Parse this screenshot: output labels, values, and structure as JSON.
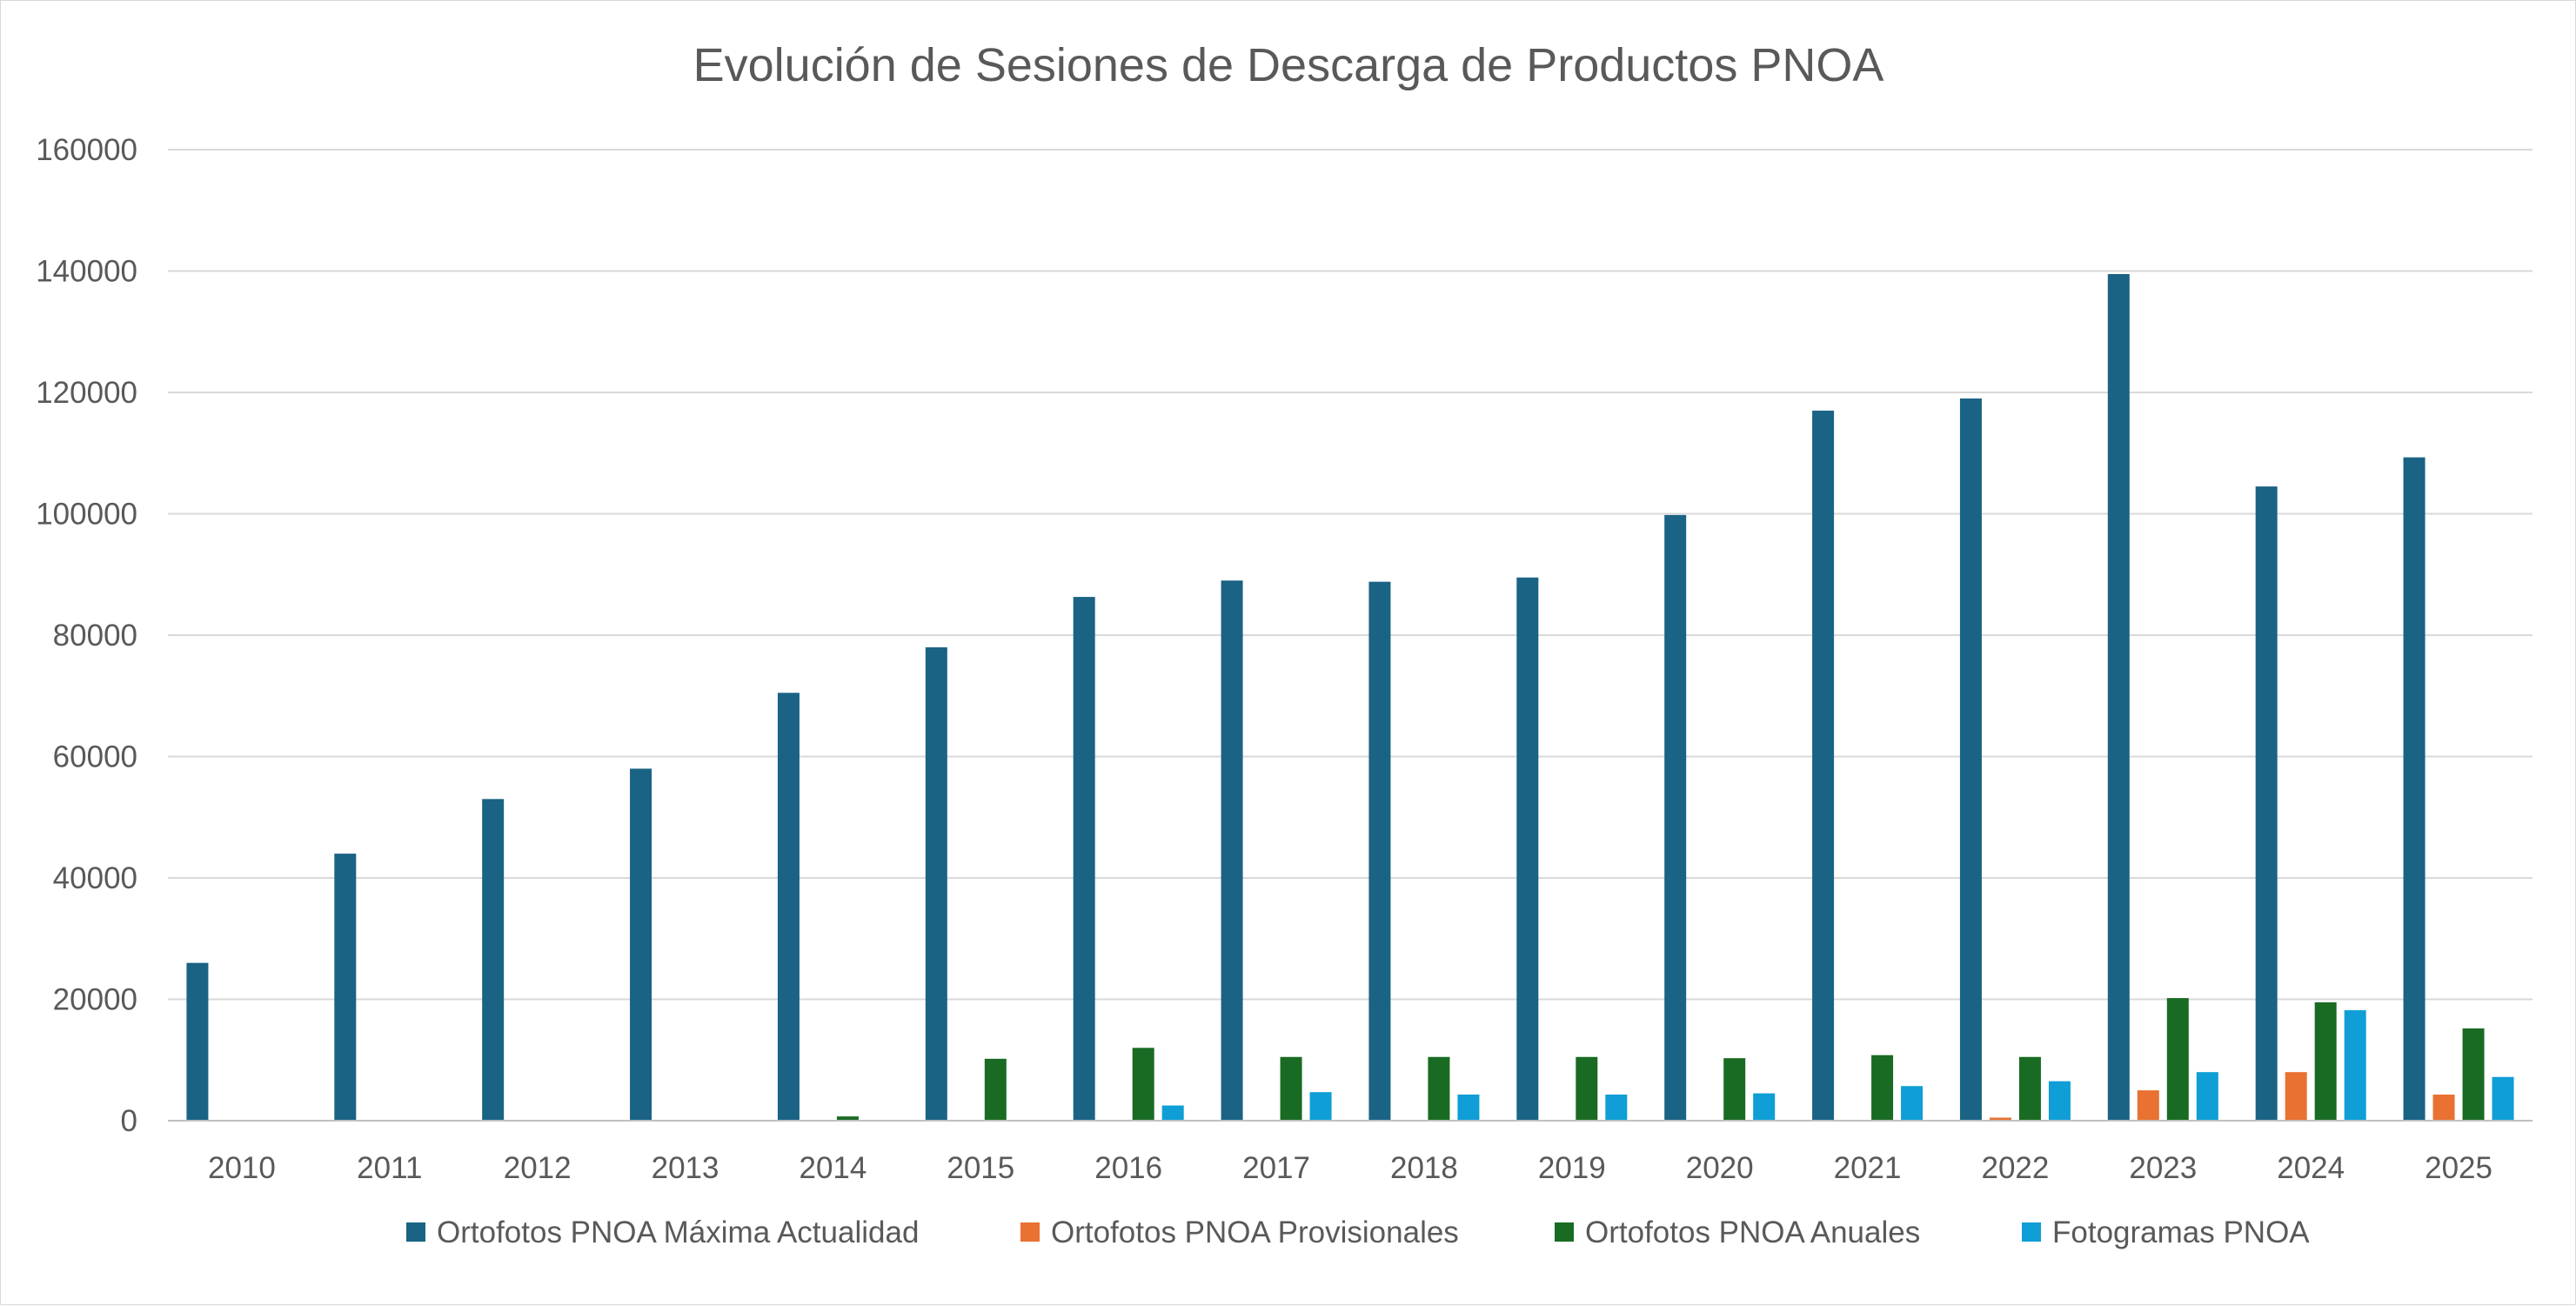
{
  "chart_data": {
    "type": "bar",
    "title": "Evolución de Sesiones de Descarga de Productos PNOA",
    "xlabel": "",
    "ylabel": "",
    "ylim": [
      0,
      160000
    ],
    "yticks": [
      "0",
      "20000",
      "40000",
      "60000",
      "80000",
      "100000",
      "120000",
      "140000",
      "160000"
    ],
    "grid": true,
    "legend_position": "bottom",
    "categories": [
      "2010",
      "2011",
      "2012",
      "2013",
      "2014",
      "2015",
      "2016",
      "2017",
      "2018",
      "2019",
      "2020",
      "2021",
      "2022",
      "2023",
      "2024",
      "2025"
    ],
    "series": [
      {
        "name": "Ortofotos PNOA Máxima Actualidad",
        "color": "#1a6384",
        "values": [
          26000,
          44000,
          53000,
          58000,
          70500,
          78000,
          86300,
          89000,
          88800,
          89500,
          99800,
          117000,
          119000,
          139500,
          104500,
          109300
        ]
      },
      {
        "name": "Ortofotos PNOA Provisionales",
        "color": "#e97132",
        "values": [
          0,
          0,
          0,
          0,
          0,
          0,
          0,
          0,
          0,
          0,
          0,
          0,
          500,
          5000,
          8000,
          4300
        ]
      },
      {
        "name": "Ortofotos PNOA Anuales",
        "color": "#196b24",
        "values": [
          0,
          0,
          0,
          0,
          700,
          10200,
          12000,
          10500,
          10500,
          10500,
          10300,
          10800,
          10500,
          20200,
          19500,
          15200
        ]
      },
      {
        "name": "Fotogramas PNOA",
        "color": "#0f9ed5",
        "values": [
          0,
          0,
          0,
          0,
          0,
          0,
          2500,
          4700,
          4300,
          4300,
          4500,
          5700,
          6500,
          8000,
          18200,
          7200
        ]
      }
    ]
  }
}
